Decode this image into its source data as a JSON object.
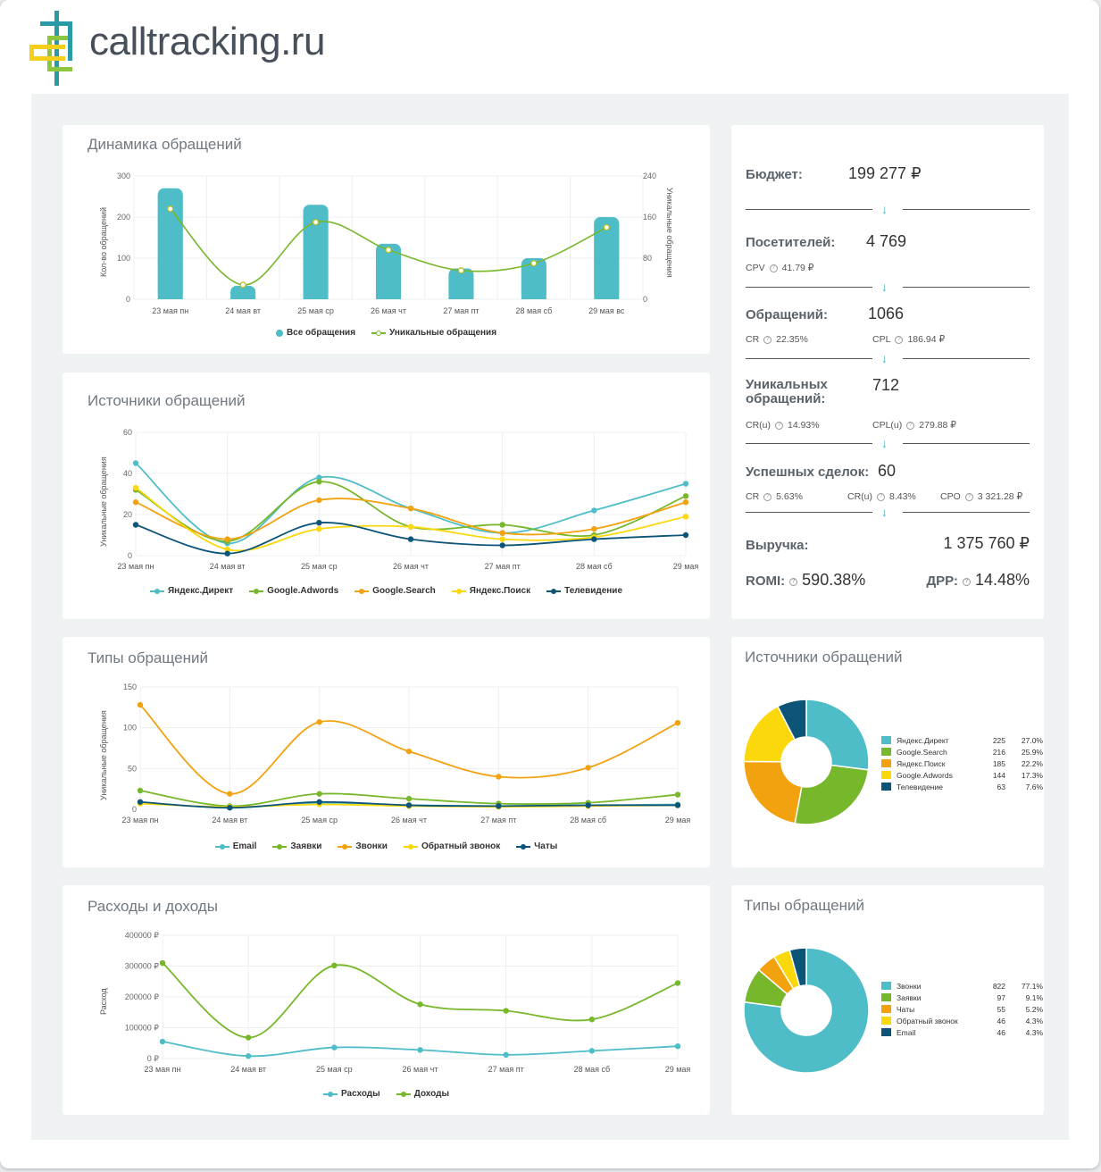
{
  "brand": {
    "name": "calltracking.ru"
  },
  "colors": {
    "teal": "#4ebdc8",
    "green": "#77b72b",
    "orange": "#f2a20f",
    "yellow": "#fbd80c",
    "navy": "#0c5478"
  },
  "days": [
    "23 мая пн",
    "24 мая вт",
    "25 мая ср",
    "26 мая чт",
    "27 мая пт",
    "28 мая сб",
    "29 мая вс"
  ],
  "days_short": [
    "23 мая пн",
    "24 мая вт",
    "25 мая ср",
    "26 мая чт",
    "27 мая пт",
    "28 мая сб",
    "29 мая"
  ],
  "dynamics": {
    "title": "Динамика обращений",
    "ylabel_left": "Кол-во обращений",
    "ylabel_right": "Уникальные обращения",
    "left_ticks": [
      "300",
      "200",
      "100",
      "0"
    ],
    "right_ticks": [
      "240",
      "160",
      "80",
      "0"
    ],
    "legend_bars": "Все обращения",
    "legend_line": "Уникальные обращения"
  },
  "sources": {
    "title": "Источники обращений",
    "ylabel": "Уникальные обращения",
    "ticks": [
      "60",
      "40",
      "20",
      "0"
    ],
    "legend": [
      "Яндекс.Директ",
      "Google.Adwords",
      "Google.Search",
      "Яндекс.Поиск",
      "Телевидение"
    ]
  },
  "types": {
    "title": "Типы обращений",
    "ylabel": "Уникальные обращения",
    "ticks": [
      "150",
      "100",
      "50",
      "0"
    ],
    "legend": [
      "Email",
      "Заявки",
      "Звонки",
      "Обратный звонок",
      "Чаты"
    ]
  },
  "finance": {
    "title": "Расходы и доходы",
    "ylabel": "Расход",
    "ticks": [
      "400000 ₽",
      "300000 ₽",
      "200000 ₽",
      "100000 ₽",
      "0 ₽"
    ],
    "legend": [
      "Расходы",
      "Доходы"
    ]
  },
  "kpi": {
    "budget_label": "Бюджет:",
    "budget_value": "199 277 ₽",
    "visitors_label": "Посетителей:",
    "visitors_value": "4 769",
    "cpv_label": "CPV",
    "cpv_value": "41.79 ₽",
    "requests_label": "Обращений:",
    "requests_value": "1066",
    "cr_label": "CR",
    "cr_value": "22.35%",
    "cpl_label": "CPL",
    "cpl_value": "186.94 ₽",
    "unique_label_1": "Уникальных",
    "unique_label_2": "обращений:",
    "unique_value": "712",
    "cru_label": "CR(u)",
    "cru_value": "14.93%",
    "cplu_label": "CPL(u)",
    "cplu_value": "279.88 ₽",
    "deals_label": "Успешных сделок:",
    "deals_value": "60",
    "deals_cr_label": "CR",
    "deals_cr_value": "5.63%",
    "deals_cru_label": "CR(u)",
    "deals_cru_value": "8.43%",
    "cpo_label": "CPO",
    "cpo_value": "3 321.28 ₽",
    "revenue_label": "Выручка:",
    "revenue_value": "1 375 760 ₽",
    "romi_label": "ROMI:",
    "romi_value": "590.38%",
    "drr_label": "ДРР:",
    "drr_value": "14.48%"
  },
  "pie_sources": {
    "title": "Источники обращений",
    "rows": [
      {
        "name": "Яндекс.Директ",
        "count": "225",
        "pct": "27.0%",
        "color": "#4ebdc8"
      },
      {
        "name": "Google.Search",
        "count": "216",
        "pct": "25.9%",
        "color": "#77b72b"
      },
      {
        "name": "Яндекс.Поиск",
        "count": "185",
        "pct": "22.2%",
        "color": "#f2a20f"
      },
      {
        "name": "Google.Adwords",
        "count": "144",
        "pct": "17.3%",
        "color": "#fbd80c"
      },
      {
        "name": "Телевидение",
        "count": "63",
        "pct": "7.6%",
        "color": "#0c5478"
      }
    ]
  },
  "pie_types": {
    "title": "Типы обращений",
    "rows": [
      {
        "name": "Звонки",
        "count": "822",
        "pct": "77.1%",
        "color": "#4ebdc8"
      },
      {
        "name": "Заявки",
        "count": "97",
        "pct": "9.1%",
        "color": "#77b72b"
      },
      {
        "name": "Чаты",
        "count": "55",
        "pct": "5.2%",
        "color": "#f2a20f"
      },
      {
        "name": "Обратный звонок",
        "count": "46",
        "pct": "4.3%",
        "color": "#fbd80c"
      },
      {
        "name": "Email",
        "count": "46",
        "pct": "4.3%",
        "color": "#0c5478"
      }
    ]
  },
  "chart_data": [
    {
      "type": "bar",
      "title": "Динамика обращений",
      "categories": [
        "23 мая пн",
        "24 мая вт",
        "25 мая ср",
        "26 мая чт",
        "27 мая пт",
        "28 мая сб",
        "29 мая вс"
      ],
      "ylabel": "Кол-во обращений",
      "ylim": [
        0,
        300
      ],
      "y2label": "Уникальные обращения",
      "y2lim": [
        0,
        240
      ],
      "series": [
        {
          "name": "Все обращения",
          "type": "bar",
          "axis": "left",
          "values": [
            270,
            33,
            230,
            135,
            75,
            100,
            200
          ]
        },
        {
          "name": "Уникальные обращения",
          "type": "line",
          "axis": "right",
          "values": [
            176,
            28,
            150,
            96,
            56,
            70,
            140
          ]
        }
      ]
    },
    {
      "type": "line",
      "title": "Источники обращений",
      "categories": [
        "23 мая пн",
        "24 мая вт",
        "25 мая ср",
        "26 мая чт",
        "27 мая пт",
        "28 мая сб",
        "29 мая"
      ],
      "ylabel": "Уникальные обращения",
      "ylim": [
        0,
        60
      ],
      "series": [
        {
          "name": "Яндекс.Директ",
          "values": [
            45,
            6,
            38,
            23,
            11,
            22,
            35
          ]
        },
        {
          "name": "Google.Adwords",
          "values": [
            32,
            7,
            36,
            14,
            15,
            10,
            29
          ]
        },
        {
          "name": "Google.Search",
          "values": [
            26,
            8,
            27,
            23,
            11,
            13,
            26
          ]
        },
        {
          "name": "Яндекс.Поиск",
          "values": [
            33,
            3,
            13,
            14,
            8,
            9,
            19
          ]
        },
        {
          "name": "Телевидение",
          "values": [
            15,
            1,
            16,
            8,
            5,
            8,
            10
          ]
        }
      ]
    },
    {
      "type": "line",
      "title": "Типы обращений",
      "categories": [
        "23 мая пн",
        "24 мая вт",
        "25 мая ср",
        "26 мая чт",
        "27 мая пт",
        "28 мая сб",
        "29 мая"
      ],
      "ylabel": "Уникальные обращения",
      "ylim": [
        0,
        150
      ],
      "series": [
        {
          "name": "Email",
          "values": [
            8,
            2,
            8,
            5,
            4,
            5,
            6
          ]
        },
        {
          "name": "Заявки",
          "values": [
            23,
            4,
            19,
            13,
            7,
            8,
            18
          ]
        },
        {
          "name": "Звонки",
          "values": [
            128,
            19,
            107,
            71,
            40,
            51,
            106
          ]
        },
        {
          "name": "Обратный звонок",
          "values": [
            7,
            3,
            6,
            4,
            3,
            4,
            5
          ]
        },
        {
          "name": "Чаты",
          "values": [
            9,
            2,
            9,
            5,
            4,
            5,
            5
          ]
        }
      ]
    },
    {
      "type": "line",
      "title": "Расходы и доходы",
      "categories": [
        "23 мая пн",
        "24 мая вт",
        "25 мая ср",
        "26 мая чт",
        "27 мая пт",
        "28 мая сб",
        "29 мая"
      ],
      "ylabel": "Расход",
      "ylim": [
        0,
        400000
      ],
      "series": [
        {
          "name": "Расходы",
          "values": [
            55000,
            8000,
            36000,
            28000,
            12000,
            25000,
            40000
          ]
        },
        {
          "name": "Доходы",
          "values": [
            310000,
            68000,
            302000,
            176000,
            155000,
            127000,
            245000
          ]
        }
      ]
    },
    {
      "type": "pie",
      "title": "Источники обращений",
      "categories": [
        "Яндекс.Директ",
        "Google.Search",
        "Яндекс.Поиск",
        "Google.Adwords",
        "Телевидение"
      ],
      "values": [
        225,
        216,
        185,
        144,
        63
      ]
    },
    {
      "type": "pie",
      "title": "Типы обращений",
      "categories": [
        "Звонки",
        "Заявки",
        "Чаты",
        "Обратный звонок",
        "Email"
      ],
      "values": [
        822,
        97,
        55,
        46,
        46
      ]
    }
  ]
}
